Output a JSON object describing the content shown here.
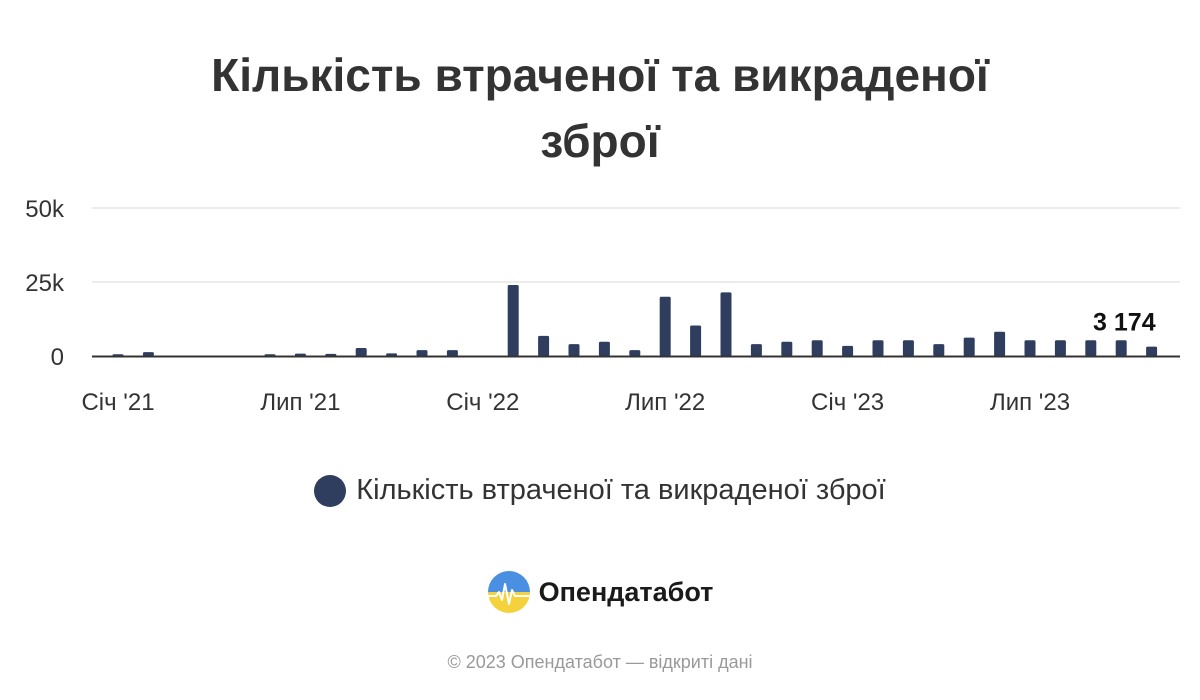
{
  "chart_data": {
    "type": "bar",
    "title_lines": [
      "Кількість втраченої та викраденої",
      "зброї"
    ],
    "x": [
      "2021-01",
      "2021-02",
      "2021-03",
      "2021-04",
      "2021-05",
      "2021-06",
      "2021-07",
      "2021-08",
      "2021-09",
      "2021-10",
      "2021-11",
      "2021-12",
      "2022-01",
      "2022-02",
      "2022-03",
      "2022-04",
      "2022-05",
      "2022-06",
      "2022-07",
      "2022-08",
      "2022-09",
      "2022-10",
      "2022-11",
      "2022-12",
      "2023-01",
      "2023-02",
      "2023-03",
      "2023-04",
      "2023-05",
      "2023-06",
      "2023-07",
      "2023-08",
      "2023-09",
      "2023-10",
      "2023-11",
      "2023-12"
    ],
    "series": [
      {
        "name": "Кількість втраченої та викраденої зброї",
        "values": [
          600,
          1300,
          0,
          0,
          0,
          600,
          800,
          700,
          2700,
          900,
          2000,
          2000,
          0,
          24000,
          6800,
          4000,
          4800,
          2000,
          20000,
          10300,
          21500,
          4000,
          4800,
          5300,
          3400,
          5300,
          5300,
          4000,
          6200,
          8200,
          5300,
          5300,
          5300,
          5300,
          3174,
          null
        ]
      }
    ],
    "x_tick_labels": [
      {
        "x": "2021-01",
        "label": "Січ '21"
      },
      {
        "x": "2021-07",
        "label": "Лип '21"
      },
      {
        "x": "2022-01",
        "label": "Січ '22"
      },
      {
        "x": "2022-07",
        "label": "Лип '22"
      },
      {
        "x": "2023-01",
        "label": "Січ '23"
      },
      {
        "x": "2023-07",
        "label": "Лип '23"
      }
    ],
    "y_ticks": [
      {
        "value": 0,
        "label": "0"
      },
      {
        "value": 25000,
        "label": "25k"
      },
      {
        "value": 50000,
        "label": "50k"
      }
    ],
    "ylim": [
      0,
      50000
    ],
    "grid": true,
    "legend_position": "bottom-center",
    "data_labels": [
      {
        "x": "2023-11",
        "value": 3174,
        "text": "3 174"
      }
    ],
    "bar_color": "#2f3d5e"
  },
  "legend": {
    "label": "Кількість втраченої та викраденої зброї",
    "color": "#2f3d5e"
  },
  "brand": {
    "name": "Опендатабот",
    "logo_icon": "opendatabot-logo-icon",
    "logo_colors": [
      "#4a90e2",
      "#f5d23c"
    ]
  },
  "footer": {
    "text": "© 2023 Опендатабот — відкриті дані"
  }
}
